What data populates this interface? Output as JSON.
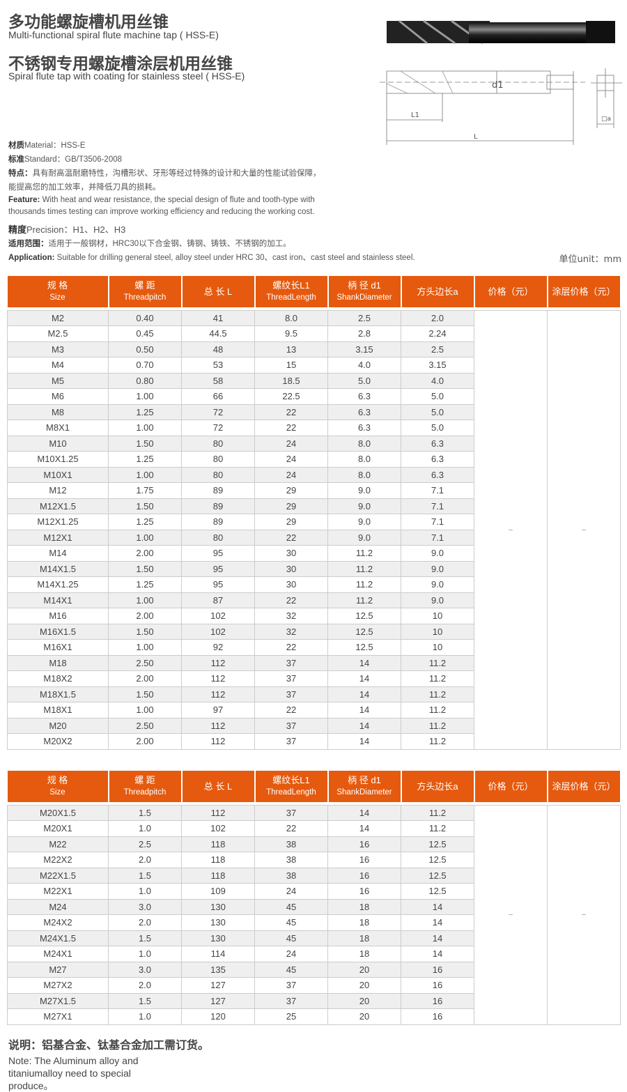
{
  "header": {
    "title_cn_1": "多功能螺旋槽机用丝锥",
    "title_en_1": "Multi-functional spiral flute machine tap ( HSS-E)",
    "title_cn_2": "不锈钢专用螺旋槽涂层机用丝锥",
    "title_en_2": "Spiral flute tap with coating for stainless steel ( HSS-E)"
  },
  "drawing": {
    "d1": "d1",
    "L1": "L1",
    "L": "L",
    "a": "□a"
  },
  "specs": {
    "material_label": "材质",
    "material": "Material：HSS-E",
    "standard_label": "标准",
    "standard": "Standard：GB/T3506-2008",
    "feature_cn_label": "特点：",
    "feature_cn_1": "具有耐高温耐磨特性，沟槽形状、牙形等经过特殊的设计和大量的性能试验保障，",
    "feature_cn_2": "能提高您的加工效率，并降低刀具的损耗。",
    "feature_en_label": "Feature:",
    "feature_en_1": " With heat and wear resistance, the special design of flute and tooth-type with",
    "feature_en_2": "thousands times testing can improve working efficiency and reducing the working cost.",
    "precision_label": "精度",
    "precision": "Precision：H1、H2、H3",
    "scope_label": "适用范围：",
    "scope": "适用于一般钢材，HRC30以下合金钢、铸钢、铸铁、不锈钢的加工。",
    "application_label": "Application:",
    "application": " Suitable for drilling general steel, alloy steel under HRC 30、cast iron、cast steel and stainless steel.",
    "unit": "单位unit：mm"
  },
  "columns": [
    {
      "cn": "规 格",
      "en": "Size"
    },
    {
      "cn": "螺 距",
      "en": "Threadpitch"
    },
    {
      "cn": "总 长 L",
      "en": ""
    },
    {
      "cn": "螺纹长L1",
      "en": "ThreadLength"
    },
    {
      "cn": "柄 径 d1",
      "en": "ShankDiameter"
    },
    {
      "cn": "方头边长a",
      "en": ""
    },
    {
      "cn": "价格（元）",
      "en": ""
    },
    {
      "cn": "涂层价格（元）",
      "en": ""
    }
  ],
  "price_placeholder": "–",
  "table1": [
    [
      "M2",
      "0.40",
      "41",
      "8.0",
      "2.5",
      "2.0"
    ],
    [
      "M2.5",
      "0.45",
      "44.5",
      "9.5",
      "2.8",
      "2.24"
    ],
    [
      "M3",
      "0.50",
      "48",
      "13",
      "3.15",
      "2.5"
    ],
    [
      "M4",
      "0.70",
      "53",
      "15",
      "4.0",
      "3.15"
    ],
    [
      "M5",
      "0.80",
      "58",
      "18.5",
      "5.0",
      "4.0"
    ],
    [
      "M6",
      "1.00",
      "66",
      "22.5",
      "6.3",
      "5.0"
    ],
    [
      "M8",
      "1.25",
      "72",
      "22",
      "6.3",
      "5.0"
    ],
    [
      "M8X1",
      "1.00",
      "72",
      "22",
      "6.3",
      "5.0"
    ],
    [
      "M10",
      "1.50",
      "80",
      "24",
      "8.0",
      "6.3"
    ],
    [
      "M10X1.25",
      "1.25",
      "80",
      "24",
      "8.0",
      "6.3"
    ],
    [
      "M10X1",
      "1.00",
      "80",
      "24",
      "8.0",
      "6.3"
    ],
    [
      "M12",
      "1.75",
      "89",
      "29",
      "9.0",
      "7.1"
    ],
    [
      "M12X1.5",
      "1.50",
      "89",
      "29",
      "9.0",
      "7.1"
    ],
    [
      "M12X1.25",
      "1.25",
      "89",
      "29",
      "9.0",
      "7.1"
    ],
    [
      "M12X1",
      "1.00",
      "80",
      "22",
      "9.0",
      "7.1"
    ],
    [
      "M14",
      "2.00",
      "95",
      "30",
      "11.2",
      "9.0"
    ],
    [
      "M14X1.5",
      "1.50",
      "95",
      "30",
      "11.2",
      "9.0"
    ],
    [
      "M14X1.25",
      "1.25",
      "95",
      "30",
      "11.2",
      "9.0"
    ],
    [
      "M14X1",
      "1.00",
      "87",
      "22",
      "11.2",
      "9.0"
    ],
    [
      "M16",
      "2.00",
      "102",
      "32",
      "12.5",
      "10"
    ],
    [
      "M16X1.5",
      "1.50",
      "102",
      "32",
      "12.5",
      "10"
    ],
    [
      "M16X1",
      "1.00",
      "92",
      "22",
      "12.5",
      "10"
    ],
    [
      "M18",
      "2.50",
      "112",
      "37",
      "14",
      "11.2"
    ],
    [
      "M18X2",
      "2.00",
      "112",
      "37",
      "14",
      "11.2"
    ],
    [
      "M18X1.5",
      "1.50",
      "112",
      "37",
      "14",
      "11.2"
    ],
    [
      "M18X1",
      "1.00",
      "97",
      "22",
      "14",
      "11.2"
    ],
    [
      "M20",
      "2.50",
      "112",
      "37",
      "14",
      "11.2"
    ],
    [
      "M20X2",
      "2.00",
      "112",
      "37",
      "14",
      "11.2"
    ]
  ],
  "table2": [
    [
      "M20X1.5",
      "1.5",
      "112",
      "37",
      "14",
      "11.2"
    ],
    [
      "M20X1",
      "1.0",
      "102",
      "22",
      "14",
      "11.2"
    ],
    [
      "M22",
      "2.5",
      "118",
      "38",
      "16",
      "12.5"
    ],
    [
      "M22X2",
      "2.0",
      "118",
      "38",
      "16",
      "12.5"
    ],
    [
      "M22X1.5",
      "1.5",
      "118",
      "38",
      "16",
      "12.5"
    ],
    [
      "M22X1",
      "1.0",
      "109",
      "24",
      "16",
      "12.5"
    ],
    [
      "M24",
      "3.0",
      "130",
      "45",
      "18",
      "14"
    ],
    [
      "M24X2",
      "2.0",
      "130",
      "45",
      "18",
      "14"
    ],
    [
      "M24X1.5",
      "1.5",
      "130",
      "45",
      "18",
      "14"
    ],
    [
      "M24X1",
      "1.0",
      "114",
      "24",
      "18",
      "14"
    ],
    [
      "M27",
      "3.0",
      "135",
      "45",
      "20",
      "16"
    ],
    [
      "M27X2",
      "2.0",
      "127",
      "37",
      "20",
      "16"
    ],
    [
      "M27X1.5",
      "1.5",
      "127",
      "37",
      "20",
      "16"
    ],
    [
      "M27X1",
      "1.0",
      "120",
      "25",
      "20",
      "16"
    ]
  ],
  "note": {
    "cn": "说明：铝基合金、钛基合金加工需订货。",
    "en": "Note: The Aluminum alloy and titaniumalloy need to special produce。"
  },
  "colors": {
    "header": "#e55a0e",
    "row_alt": "#efefef"
  }
}
